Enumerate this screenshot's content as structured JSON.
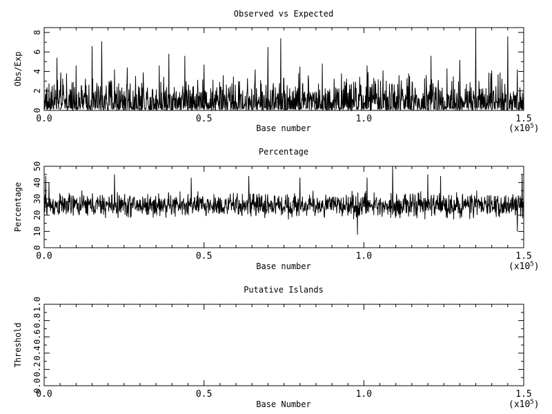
{
  "chart_data": [
    {
      "type": "line",
      "title": "Observed vs Expected",
      "xlabel": "Base number",
      "ylabel": "Obs/Exp",
      "x_multiplier": "(x10",
      "x_multiplier_exp": "5",
      "xlim": [
        0,
        150000
      ],
      "ylim": [
        0,
        8.5
      ],
      "x_ticks": [
        "0.0",
        "0.5",
        "1.0",
        "1.5"
      ],
      "y_ticks": [
        "0",
        "2",
        "4",
        "6",
        "8"
      ],
      "y_tick_values": [
        0,
        2,
        4,
        6,
        8
      ],
      "grid": false,
      "noise": {
        "n": 1500,
        "base": 0.8,
        "spread": 2.4,
        "floor": 0
      },
      "spikes": [
        [
          4000,
          5.4
        ],
        [
          7000,
          3.8
        ],
        [
          10000,
          4.6
        ],
        [
          15000,
          6.6
        ],
        [
          18000,
          7.1
        ],
        [
          22000,
          4.2
        ],
        [
          26000,
          4.4
        ],
        [
          31000,
          3.9
        ],
        [
          36000,
          4.6
        ],
        [
          39000,
          5.8
        ],
        [
          44000,
          5.6
        ],
        [
          50000,
          4.7
        ],
        [
          56000,
          3.6
        ],
        [
          66000,
          4.2
        ],
        [
          70000,
          6.5
        ],
        [
          74000,
          7.4
        ],
        [
          80000,
          4.5
        ],
        [
          87000,
          4.8
        ],
        [
          93000,
          3.8
        ],
        [
          101000,
          4.6
        ],
        [
          106000,
          4.1
        ],
        [
          111000,
          3.6
        ],
        [
          114000,
          3.8
        ],
        [
          121000,
          5.6
        ],
        [
          126000,
          4.3
        ],
        [
          130000,
          5.2
        ],
        [
          135000,
          8.5
        ],
        [
          140000,
          4.1
        ],
        [
          142000,
          3.7
        ],
        [
          145000,
          7.6
        ],
        [
          148000,
          4.2
        ]
      ]
    },
    {
      "type": "line",
      "title": "Percentage",
      "xlabel": "Base number",
      "ylabel": "Percentage",
      "x_multiplier": "(x10",
      "x_multiplier_exp": "5",
      "xlim": [
        0,
        150000
      ],
      "ylim": [
        0,
        50
      ],
      "x_ticks": [
        "0.0",
        "0.5",
        "1.0",
        "1.5"
      ],
      "y_ticks": [
        "0",
        "10",
        "20",
        "30",
        "40",
        "50"
      ],
      "y_tick_values": [
        0,
        10,
        20,
        30,
        40,
        50
      ],
      "grid": false,
      "noise": {
        "n": 1500,
        "base": 26,
        "spread": 7,
        "floor": 5
      },
      "spikes": [
        [
          500,
          44
        ],
        [
          1500,
          40
        ],
        [
          22000,
          45
        ],
        [
          46000,
          43
        ],
        [
          64000,
          44
        ],
        [
          80000,
          43
        ],
        [
          98000,
          8
        ],
        [
          101000,
          43
        ],
        [
          109000,
          50
        ],
        [
          120000,
          45
        ],
        [
          124000,
          44
        ],
        [
          148000,
          10
        ],
        [
          149500,
          45
        ]
      ]
    },
    {
      "type": "line",
      "title": "Putative Islands",
      "xlabel": "Base Number",
      "ylabel": "Threshold",
      "x_multiplier": "(x10",
      "x_multiplier_exp": "5",
      "xlim": [
        0,
        150000
      ],
      "ylim": [
        0,
        1
      ],
      "x_ticks": [
        "0.0",
        "0.5",
        "1.0",
        "1.5"
      ],
      "y_ticks": [
        "0.0",
        "0.2",
        "0.4",
        "0.6",
        "0.8",
        "1.0"
      ],
      "y_tick_values": [
        0,
        0.2,
        0.4,
        0.6,
        0.8,
        1.0
      ],
      "grid": false
    }
  ]
}
